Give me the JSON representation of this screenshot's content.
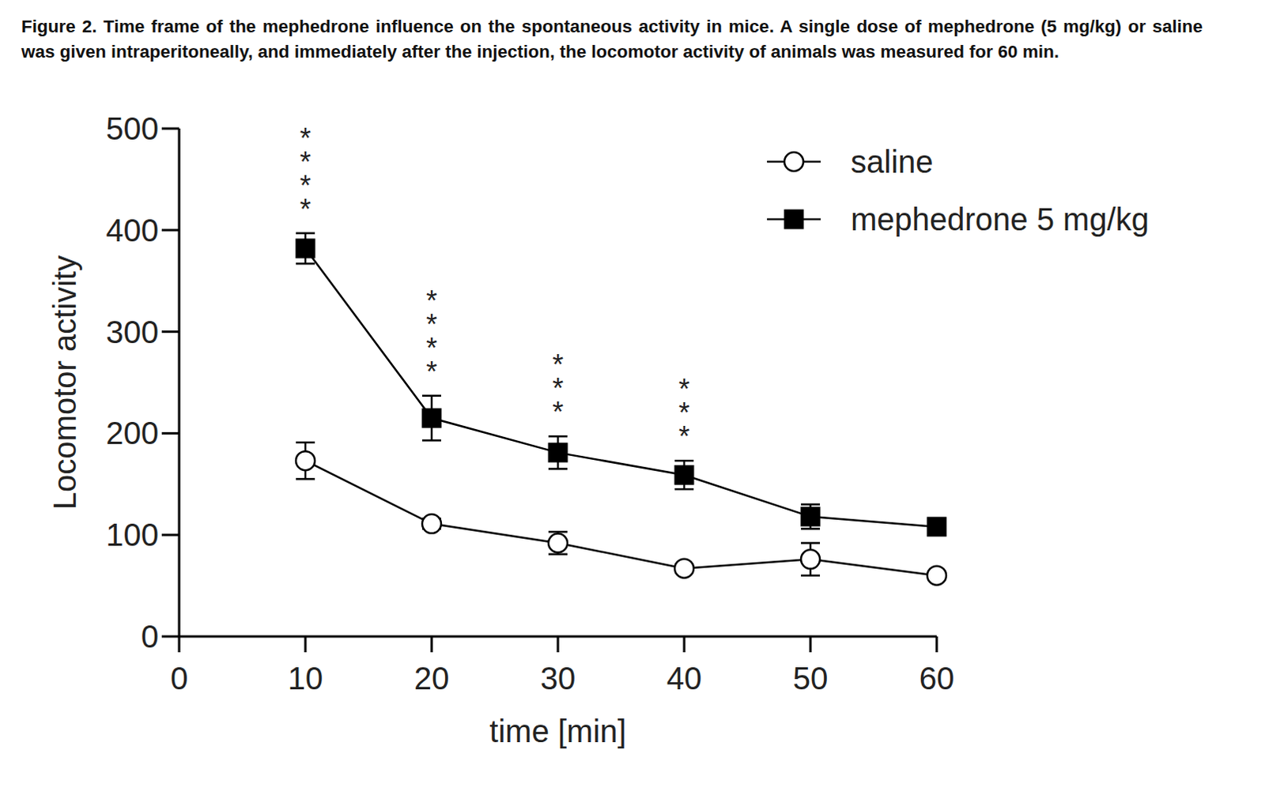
{
  "chart_data": {
    "type": "line",
    "title": "Figure 2. Time frame of the mephedrone influence on the spontaneous activity in mice. A single dose of mephedrone (5 mg/kg) or saline was given intraperitoneally, and immediately after the injection, the locomotor activity of animals was measured for 60 min.",
    "x_label": "time [min]",
    "y_label": "Locomotor activity",
    "x": [
      10,
      20,
      30,
      40,
      50,
      60
    ],
    "series": [
      {
        "name": "saline",
        "color": "#000000",
        "marker": "open-circle",
        "line_style": "solid",
        "values": [
          173,
          111,
          92,
          67,
          76,
          60
        ],
        "errors": [
          18,
          5,
          11,
          4,
          16,
          4
        ]
      },
      {
        "name": "mephedrone 5 mg/kg",
        "color": "#000000",
        "marker": "square",
        "line_style": "solid",
        "values": [
          382,
          215,
          181,
          159,
          118,
          108
        ],
        "errors": [
          15,
          22,
          16,
          14,
          12,
          8
        ]
      }
    ],
    "annotations": [
      {
        "x": 10,
        "text": "****"
      },
      {
        "x": 20,
        "text": "****"
      },
      {
        "x": 30,
        "text": "***"
      },
      {
        "x": 40,
        "text": "***"
      }
    ],
    "xlim": [
      0,
      60
    ],
    "xticks": [
      0,
      10,
      20,
      30,
      40,
      50,
      60
    ],
    "ylim": [
      0,
      500
    ],
    "yticks": [
      0,
      100,
      200,
      300,
      400,
      500
    ],
    "legend": "upper-right",
    "grid": false
  }
}
